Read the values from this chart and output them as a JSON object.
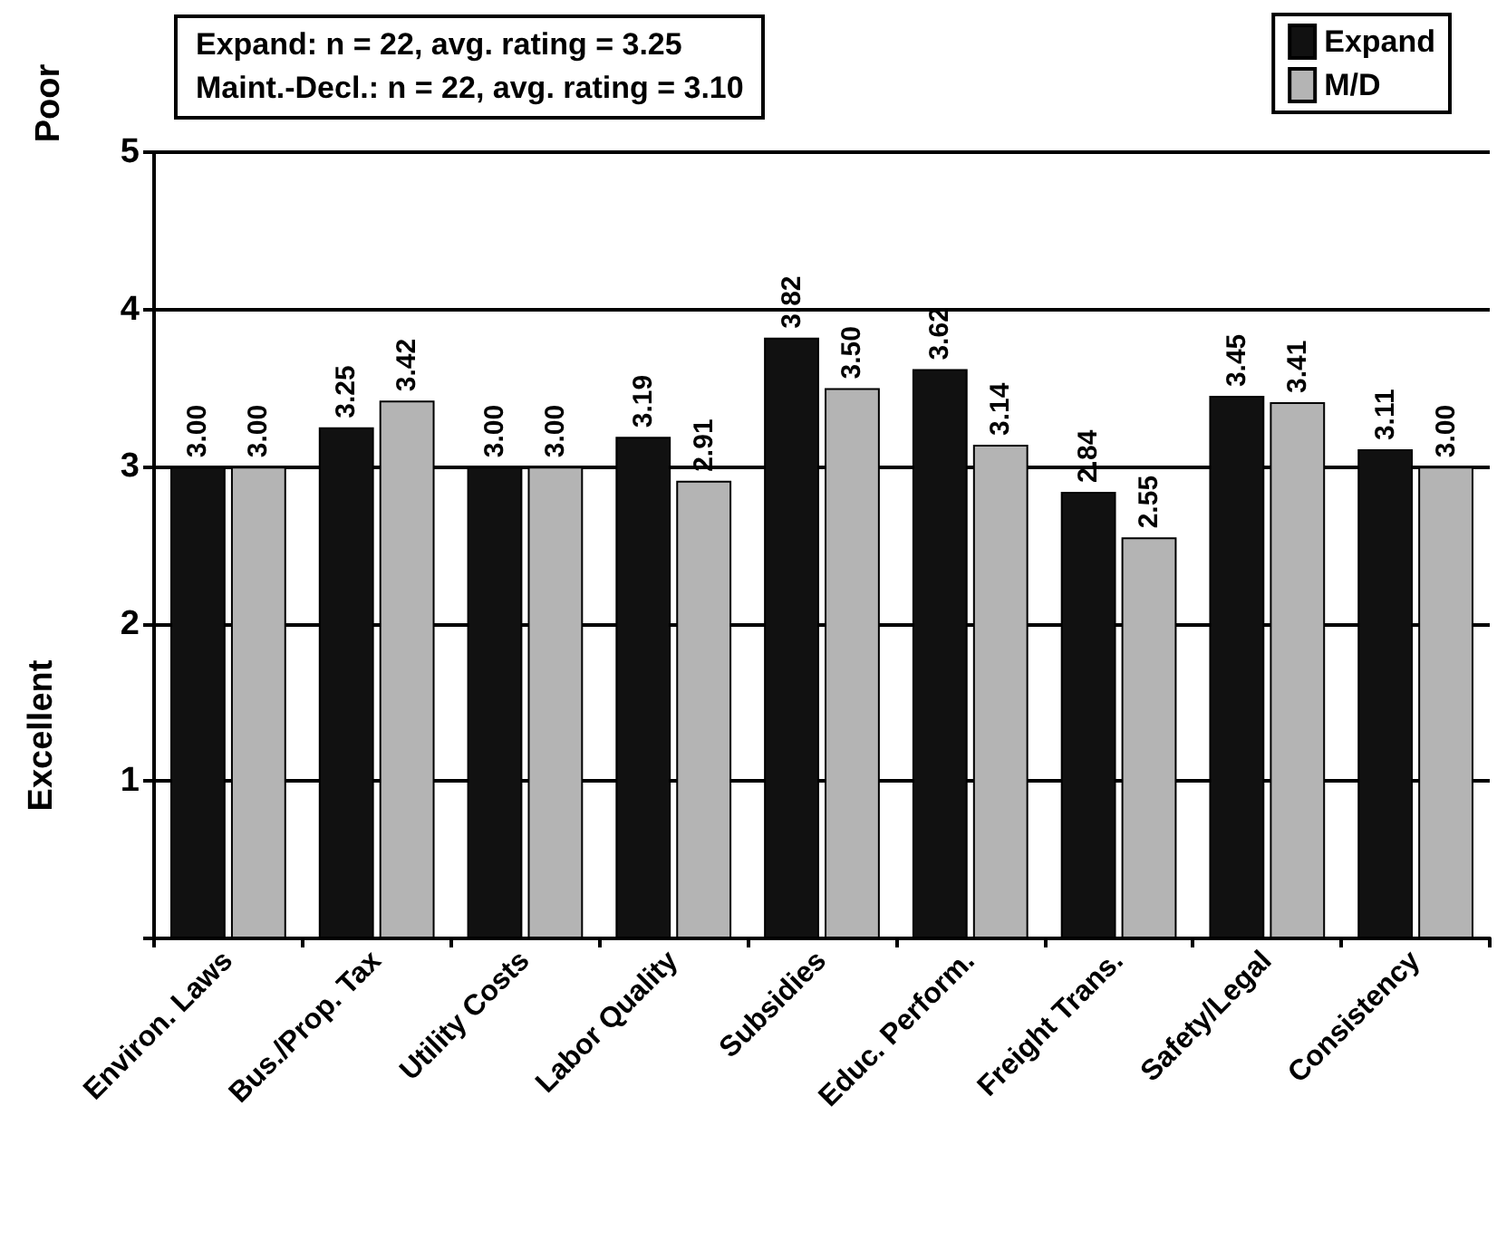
{
  "chart_data": {
    "type": "bar",
    "ylabel": "Excellent",
    "annotations": [
      "Poor",
      "Expand: n = 22, avg. rating = 3.25",
      "Maint.-Decl.: n = 22, avg. rating = 3.10"
    ],
    "categories": [
      "Environ. Laws",
      "Bus./Prop. Tax",
      "Utility Costs",
      "Labor Quality",
      "Subsidies",
      "Educ. Perform.",
      "Freight Trans.",
      "Safety/Legal",
      "Consistency"
    ],
    "series": [
      {
        "name": "Expand",
        "color": "#111111",
        "values": [
          3.0,
          3.25,
          3.0,
          3.19,
          3.82,
          3.62,
          2.84,
          3.45,
          3.11
        ],
        "value_labels": [
          "3.00",
          "3.25",
          "3.00",
          "3.19",
          "3.82",
          "3.62",
          "2.84",
          "3.45",
          "3.11"
        ]
      },
      {
        "name": "M/D",
        "color": "#b4b4b4",
        "values": [
          3.0,
          3.42,
          3.0,
          2.91,
          3.5,
          3.14,
          2.55,
          3.41,
          3.0
        ],
        "value_labels": [
          "3.00",
          "3.42",
          "3.00",
          "2.91",
          "3.50",
          "3.14",
          "2.55",
          "3.41",
          "3.00"
        ]
      }
    ],
    "ylim": [
      0,
      5
    ],
    "yticks": [
      {
        "value": 0,
        "label": null
      },
      1,
      2,
      3,
      4,
      5
    ],
    "grid": "y",
    "legend": "top right"
  }
}
